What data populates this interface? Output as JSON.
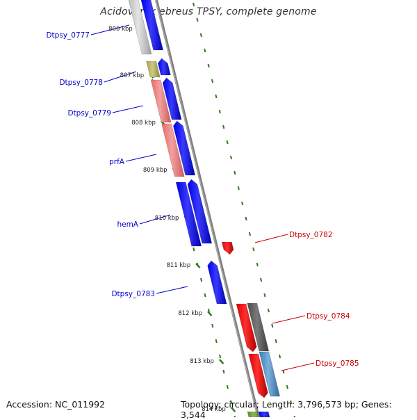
{
  "page": {
    "title": "Acidovorax ebreus TPSY, complete genome",
    "accession": "Accession: NC_011992",
    "topology": "Topology: circular; Length: 3,796,573 bp; Genes: 3,544"
  },
  "colors": {
    "forward_label": "#0000cc",
    "reverse_label": "#cc0000",
    "tick": "#2e7d1e",
    "backbone": "#808080"
  },
  "tick_labels": [
    "806 kbp",
    "807 kbp",
    "808 kbp",
    "809 kbp",
    "810 kbp",
    "811 kbp",
    "812 kbp",
    "813 kbp",
    "814 kbp"
  ],
  "gene_labels": [
    {
      "text": "Dtpsy_0777",
      "strand": "forward"
    },
    {
      "text": "Dtpsy_0778",
      "strand": "forward"
    },
    {
      "text": "Dtpsy_0779",
      "strand": "forward"
    },
    {
      "text": "prfA",
      "strand": "forward"
    },
    {
      "text": "hemA",
      "strand": "forward"
    },
    {
      "text": "Dtpsy_0783",
      "strand": "forward"
    },
    {
      "text": "Dtpsy_0782",
      "strand": "reverse"
    },
    {
      "text": "Dtpsy_0784",
      "strand": "reverse"
    },
    {
      "text": "Dtpsy_0785",
      "strand": "reverse"
    }
  ]
}
